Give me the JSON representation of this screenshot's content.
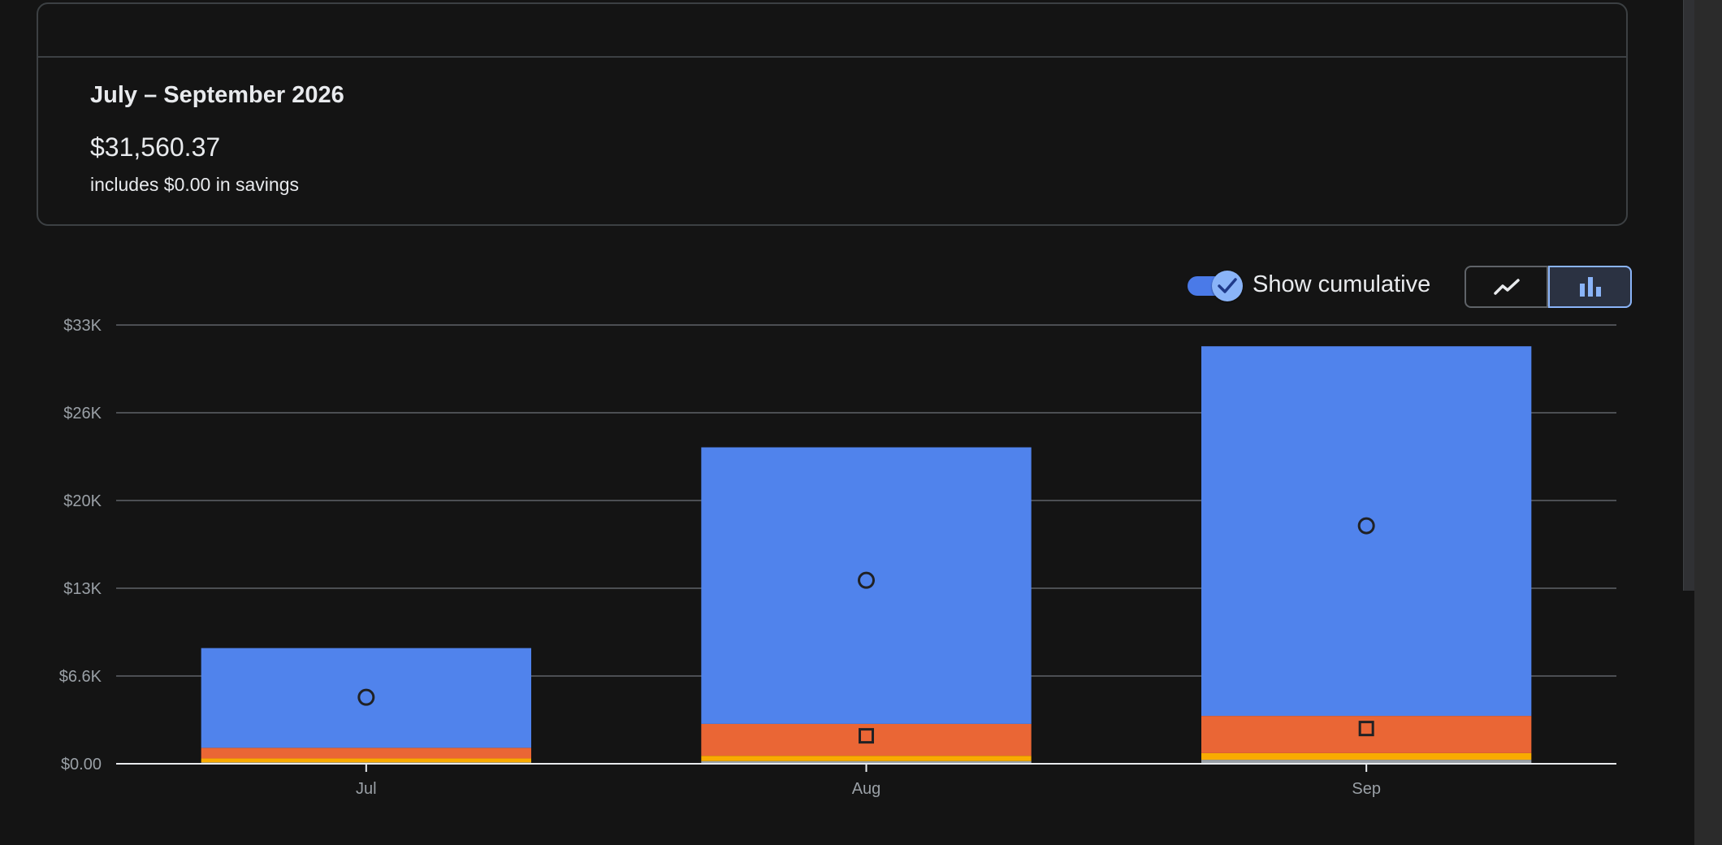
{
  "summary": {
    "period": "July – September 2026",
    "total": "$31,560.37",
    "savings": "includes $0.00 in savings"
  },
  "controls": {
    "cumulative_label": "Show cumulative",
    "cumulative_on": true,
    "view_mode": "bar"
  },
  "chart_data": {
    "type": "bar",
    "stacked": true,
    "cumulative": true,
    "categories": [
      "Jul",
      "Aug",
      "Sep"
    ],
    "y_tick_labels": [
      "$0.00",
      "$6.6K",
      "$13K",
      "$20K",
      "$26K",
      "$33K"
    ],
    "ylim": [
      0,
      33000
    ],
    "grid": true,
    "series": [
      {
        "color": "#9aa0a6",
        "values": [
          100,
          200,
          300
        ]
      },
      {
        "color": "#f9ab00",
        "values": [
          300,
          400,
          500
        ]
      },
      {
        "color": "#ea6635",
        "values": [
          800,
          2400,
          2800
        ]
      },
      {
        "color": "#5083ec",
        "values": [
          7500,
          20800,
          27800
        ]
      }
    ],
    "markers": [
      {
        "category": "Jul",
        "shape": "circle",
        "value": 5000
      },
      {
        "category": "Aug",
        "shape": "square",
        "value": 2100
      },
      {
        "category": "Aug",
        "shape": "circle",
        "value": 13800
      },
      {
        "category": "Sep",
        "shape": "square",
        "value": 2650
      },
      {
        "category": "Sep",
        "shape": "circle",
        "value": 17900
      }
    ]
  },
  "colors": {
    "background": "#141414",
    "grid": "#5f6368",
    "axis_text": "#9aa0a6",
    "accent": "#8ab4f8"
  }
}
